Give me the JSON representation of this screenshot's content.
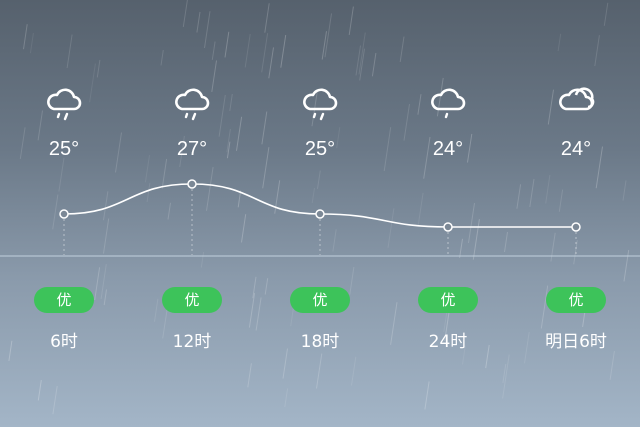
{
  "forecast": [
    {
      "icon": "light-rain-icon",
      "temp": "25°",
      "aqi": "优",
      "time": "6时"
    },
    {
      "icon": "light-rain-icon",
      "temp": "27°",
      "aqi": "优",
      "time": "12时"
    },
    {
      "icon": "light-rain-icon",
      "temp": "25°",
      "aqi": "优",
      "time": "18时"
    },
    {
      "icon": "drizzle-icon",
      "temp": "24°",
      "aqi": "优",
      "time": "24时"
    },
    {
      "icon": "cloudy-icon",
      "temp": "24°",
      "aqi": "优",
      "time": "明日6时"
    }
  ],
  "temps": [
    25,
    27,
    25,
    24,
    24
  ],
  "colors": {
    "aqi_good": "#3dc35a"
  }
}
